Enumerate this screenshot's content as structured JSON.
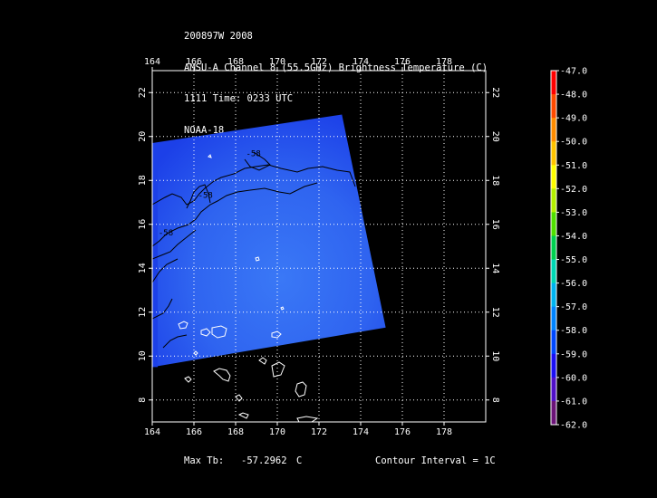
{
  "title": {
    "line1": "200897W 2008",
    "line2": "AMSU-A Channel 8 (55.5GHz) Brightness Temperature (C)",
    "line3": "1111 Time: 0233 UTC",
    "line4": "NOAA-18"
  },
  "footer": {
    "max_tb_label": "Max Tb:",
    "max_tb_value": "-57.2962",
    "max_tb_unit": "C",
    "contour_interval": "Contour Interval = 1C"
  },
  "colors": {
    "swath_light": "#3a78f6",
    "swath_mid": "#2f64f0",
    "swath_dark": "#1c40e8",
    "background": "#000000",
    "grid": "#ffffff",
    "contour": "#000000",
    "coast": "#ffffff"
  },
  "chart_data": {
    "type": "heatmap",
    "x_ticks": [
      "164",
      "166",
      "168",
      "170",
      "172",
      "174",
      "176",
      "178"
    ],
    "y_ticks": [
      "8",
      "10",
      "12",
      "14",
      "16",
      "18",
      "20",
      "22"
    ],
    "xlim": [
      164,
      180
    ],
    "ylim": [
      7,
      23
    ],
    "grid": true,
    "swath_corners_lonlat": [
      [
        164,
        19.7
      ],
      [
        173.1,
        21.0
      ],
      [
        175.2,
        11.3
      ],
      [
        164,
        9.5
      ]
    ],
    "contour_labels": [
      {
        "text": "-58",
        "lon": 168.5,
        "lat": 19.1
      },
      {
        "text": "-58",
        "lon": 166.2,
        "lat": 17.2
      },
      {
        "text": "-58",
        "lon": 164.3,
        "lat": 15.5
      }
    ],
    "max_tb_value": -57.2962,
    "contour_interval_c": 1,
    "colorbar": {
      "labels": [
        "-47.0",
        "-48.0",
        "-49.0",
        "-50.0",
        "-51.0",
        "-52.0",
        "-53.0",
        "-54.0",
        "-55.0",
        "-56.0",
        "-57.0",
        "-58.0",
        "-59.0",
        "-60.0",
        "-61.0",
        "-62.0"
      ],
      "values": [
        -47,
        -48,
        -49,
        -50,
        -51,
        -52,
        -53,
        -54,
        -55,
        -56,
        -57,
        -58,
        -59,
        -60,
        -61,
        -62
      ],
      "colors": [
        "#ff0000",
        "#ff4a00",
        "#ff8c00",
        "#ffc400",
        "#ffff00",
        "#b4f000",
        "#50e000",
        "#00d050",
        "#00d8b4",
        "#00b4f0",
        "#0084ff",
        "#0048ff",
        "#1c10f4",
        "#5010c8",
        "#6c1478",
        "#1a0a1a"
      ],
      "range": [
        -62,
        -47
      ]
    }
  }
}
